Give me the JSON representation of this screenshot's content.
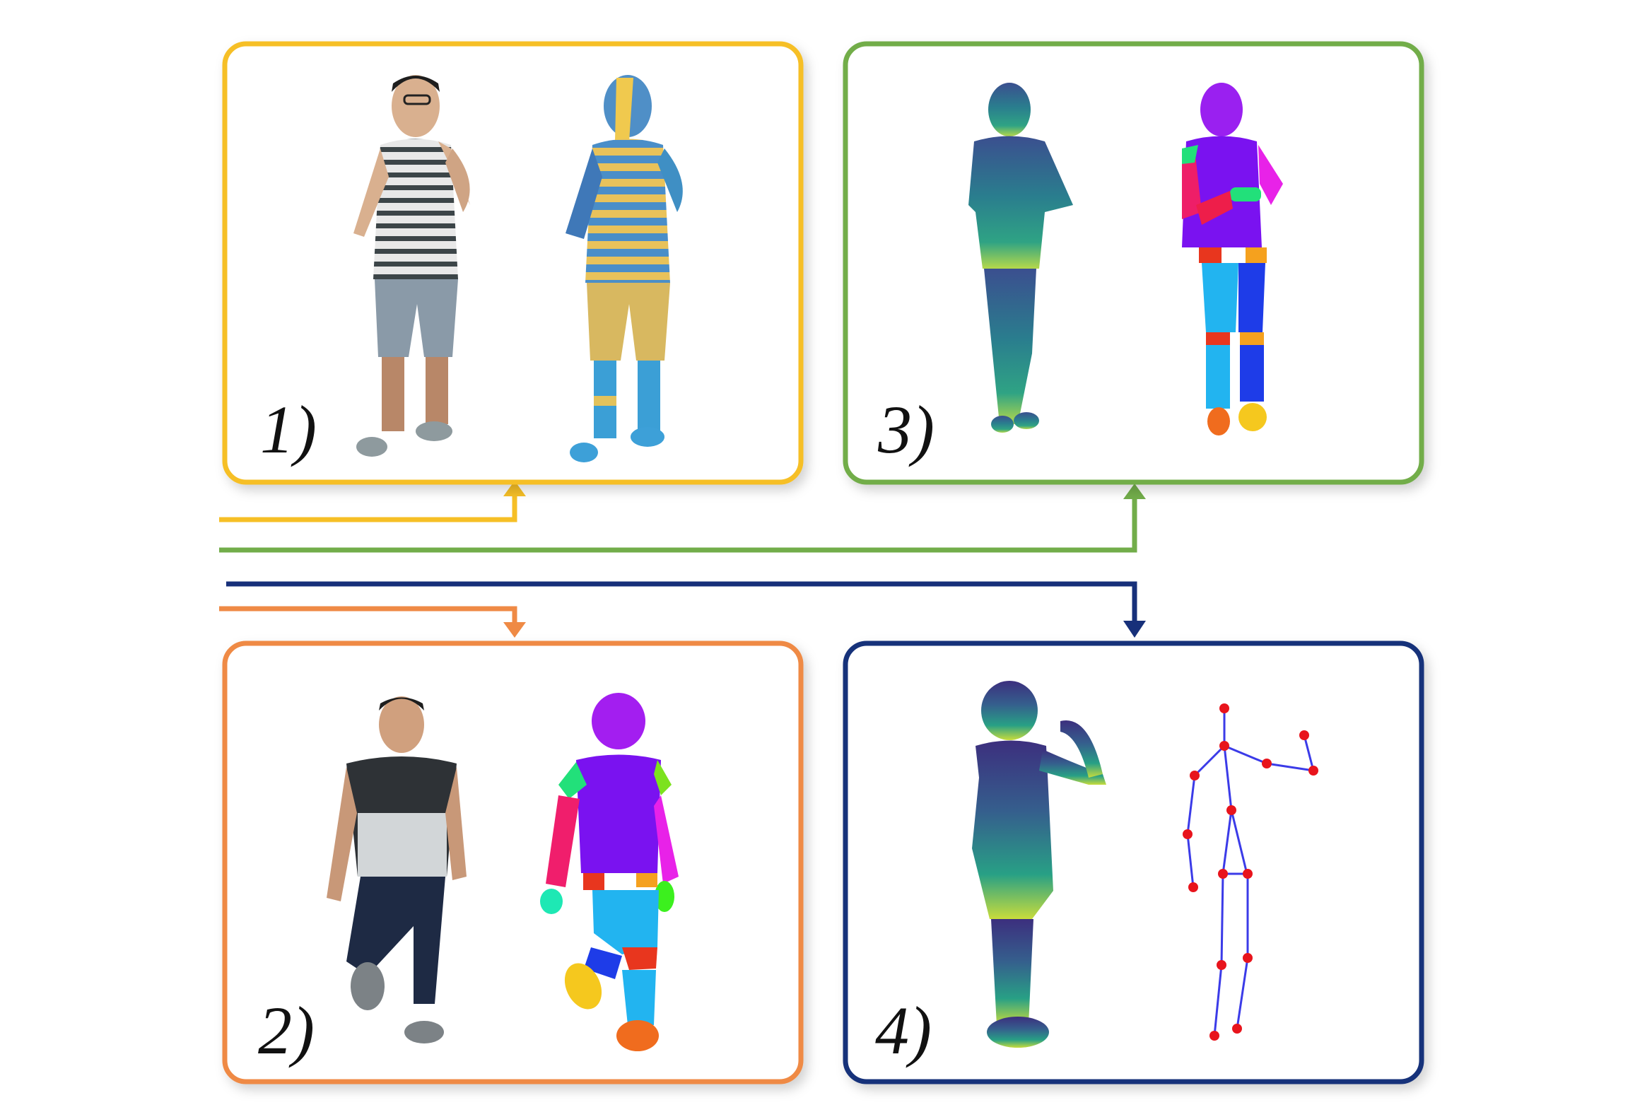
{
  "panels": [
    {
      "id": "1",
      "label": "1)",
      "color": "#f6bf26",
      "content": [
        "photo-person",
        "depth-colored-person"
      ]
    },
    {
      "id": "2",
      "label": "2)",
      "color": "#ef8a45",
      "content": [
        "photo-person",
        "body-part-segmentation"
      ]
    },
    {
      "id": "3",
      "label": "3)",
      "color": "#72ad4a",
      "content": [
        "depth-map-person",
        "body-part-segmentation"
      ]
    },
    {
      "id": "4",
      "label": "4)",
      "color": "#17307a",
      "content": [
        "depth-map-person",
        "skeleton-keypoints"
      ]
    }
  ],
  "colors": {
    "yellow": "#f6bf26",
    "orange": "#ef8a45",
    "green": "#72ad4a",
    "navy": "#17307a",
    "keypoint": "#e8141c",
    "bone": "#3b3be8"
  }
}
